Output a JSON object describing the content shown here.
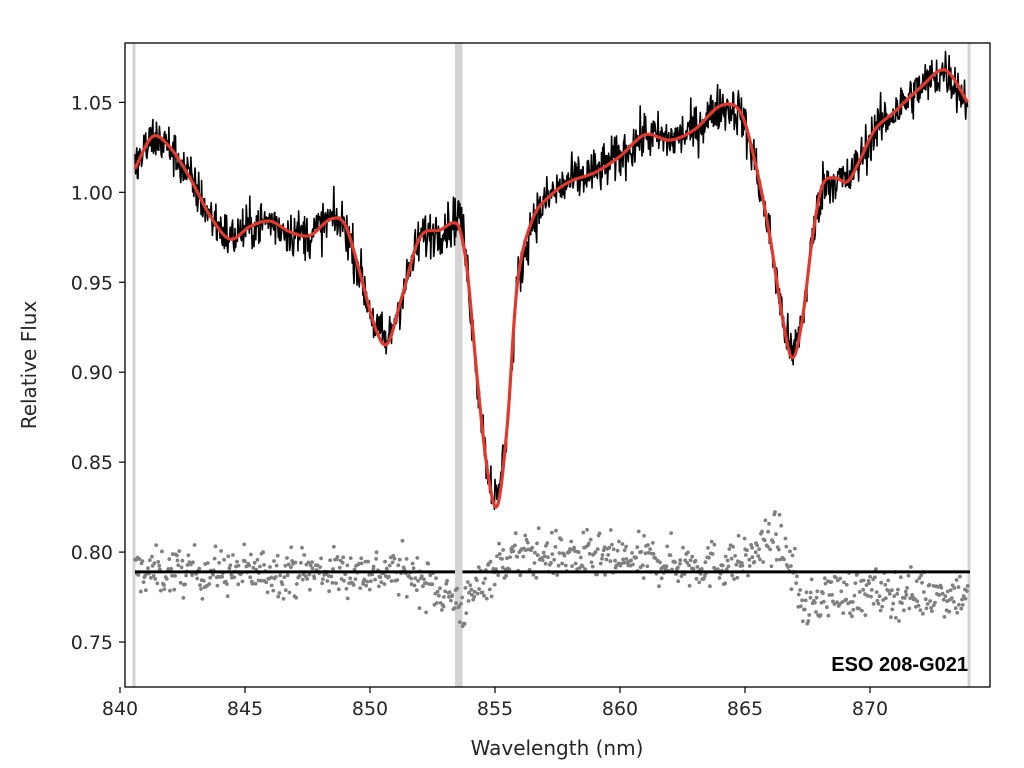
{
  "chart_data": {
    "type": "line",
    "title": "",
    "xlabel": "Wavelength (nm)",
    "ylabel": "Relative Flux",
    "xlim": [
      840.2,
      874.8
    ],
    "ylim": [
      0.725,
      1.083
    ],
    "xticks": [
      840,
      845,
      850,
      855,
      860,
      865,
      870
    ],
    "xtick_labels": [
      "840",
      "845",
      "850",
      "855",
      "860",
      "865",
      "870"
    ],
    "yticks": [
      0.75,
      0.8,
      0.85,
      0.9,
      0.95,
      1.0,
      1.05
    ],
    "ytick_labels": [
      "0.75",
      "0.80",
      "0.85",
      "0.90",
      "0.95",
      "1.00",
      "1.05"
    ],
    "grid": false,
    "annotation": "ESO 208-G021",
    "masked_regions": [
      [
        840.5,
        840.6
      ],
      [
        853.4,
        853.7
      ],
      [
        873.9,
        874.0
      ]
    ],
    "series": [
      {
        "role": "observed spectrum",
        "style": "black noisy line",
        "color": "#000000",
        "x": [
          840.6,
          841.3,
          842.0,
          842.8,
          843.6,
          844.4,
          845.2,
          846.0,
          846.8,
          847.6,
          848.4,
          849.0,
          849.6,
          850.2,
          850.7,
          851.3,
          852.0,
          852.8,
          853.3,
          853.6,
          853.9,
          854.3,
          854.7,
          855.1,
          855.5,
          855.9,
          856.5,
          857.2,
          858.0,
          859.0,
          860.0,
          861.0,
          862.0,
          863.0,
          864.0,
          864.8,
          865.4,
          866.0,
          866.5,
          866.9,
          867.3,
          867.7,
          868.1,
          868.6,
          869.1,
          869.6,
          870.2,
          871.0,
          872.0,
          873.0,
          873.9
        ],
        "y": [
          1.013,
          1.031,
          1.025,
          1.008,
          0.987,
          0.974,
          0.981,
          0.984,
          0.978,
          0.976,
          0.985,
          0.982,
          0.955,
          0.925,
          0.916,
          0.943,
          0.975,
          0.979,
          0.983,
          0.99,
          0.955,
          0.895,
          0.845,
          0.826,
          0.872,
          0.95,
          0.985,
          0.998,
          1.006,
          1.011,
          1.02,
          1.032,
          1.029,
          1.035,
          1.048,
          1.045,
          1.017,
          0.975,
          0.93,
          0.908,
          0.93,
          0.975,
          1.004,
          1.008,
          1.006,
          1.018,
          1.035,
          1.045,
          1.058,
          1.068,
          1.05
        ],
        "noise_amplitude": 0.012
      },
      {
        "role": "smooth fit",
        "style": "red line",
        "color": "#e03a2f",
        "x": [
          840.6,
          841.3,
          842.0,
          842.8,
          843.6,
          844.4,
          845.2,
          846.0,
          846.8,
          847.6,
          848.4,
          849.0,
          849.6,
          850.2,
          850.7,
          851.3,
          852.0,
          852.8,
          853.3,
          853.6,
          853.9,
          854.3,
          854.7,
          855.1,
          855.5,
          855.9,
          856.5,
          857.2,
          858.0,
          859.0,
          860.0,
          861.0,
          862.0,
          863.0,
          864.0,
          864.8,
          865.4,
          866.0,
          866.5,
          866.9,
          867.3,
          867.7,
          868.1,
          868.6,
          869.1,
          869.6,
          870.2,
          871.0,
          872.0,
          873.0,
          873.9
        ],
        "y": [
          1.013,
          1.031,
          1.025,
          1.008,
          0.987,
          0.974,
          0.981,
          0.984,
          0.978,
          0.976,
          0.985,
          0.982,
          0.955,
          0.925,
          0.916,
          0.943,
          0.975,
          0.979,
          0.983,
          0.979,
          0.955,
          0.895,
          0.845,
          0.826,
          0.872,
          0.95,
          0.985,
          0.998,
          1.006,
          1.011,
          1.02,
          1.032,
          1.029,
          1.035,
          1.048,
          1.045,
          1.017,
          0.975,
          0.93,
          0.908,
          0.93,
          0.975,
          1.004,
          1.008,
          1.006,
          1.018,
          1.035,
          1.045,
          1.058,
          1.068,
          1.05
        ]
      },
      {
        "role": "residuals (offset)",
        "style": "grey dots",
        "color": "#808080",
        "baseline": 0.789,
        "x_start": 840.6,
        "x_end": 873.9,
        "count": 900,
        "scatter_sd": 0.011,
        "deviation_x": [
          851.5,
          853.0,
          853.8,
          854.5,
          855.5,
          856.5,
          863.5,
          865.0,
          866.2,
          866.8,
          867.4,
          868.2
        ],
        "deviation_y": [
          0.0,
          -0.012,
          -0.02,
          -0.004,
          0.008,
          0.01,
          0.004,
          0.006,
          0.02,
          0.006,
          -0.022,
          -0.012
        ]
      },
      {
        "role": "zero-residual reference",
        "style": "black horizontal line",
        "color": "#000000",
        "y": 0.789,
        "segments": [
          [
            840.6,
            853.4
          ],
          [
            853.7,
            874.0
          ]
        ]
      }
    ]
  }
}
